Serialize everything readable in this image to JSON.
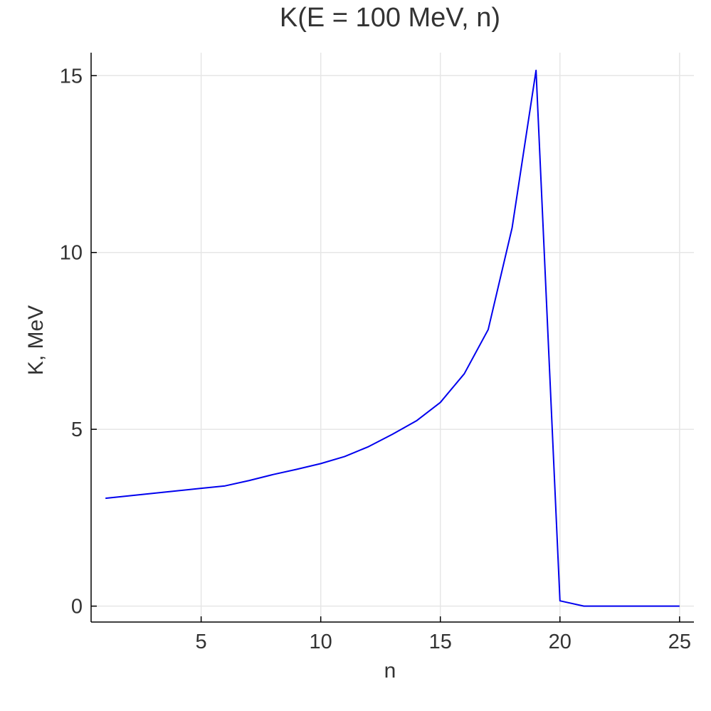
{
  "chart_data": {
    "type": "line",
    "title": "K(E = 100 MeV, n)",
    "xlabel": "n",
    "ylabel": "K, MeV",
    "xlim": [
      0.4,
      25.6
    ],
    "ylim": [
      -0.45,
      15.65
    ],
    "xticks": [
      5,
      10,
      15,
      20,
      25
    ],
    "yticks": [
      0,
      5,
      10,
      15
    ],
    "xtick_labels": [
      "5",
      "10",
      "15",
      "20",
      "25"
    ],
    "ytick_labels": [
      "0",
      "5",
      "10",
      "15"
    ],
    "grid": true,
    "legend": "none",
    "series": [
      {
        "color": "#0000ee",
        "x": [
          1,
          2,
          3,
          4,
          5,
          6,
          7,
          8,
          9,
          10,
          11,
          12,
          13,
          14,
          15,
          16,
          17,
          18,
          19,
          20,
          21,
          22,
          23,
          24,
          25
        ],
        "y": [
          3.05,
          3.12,
          3.19,
          3.26,
          3.33,
          3.4,
          3.55,
          3.72,
          3.87,
          4.03,
          4.23,
          4.51,
          4.86,
          5.24,
          5.76,
          6.57,
          7.82,
          10.7,
          15.15,
          0.15,
          0.0,
          0.0,
          0.0,
          0.0,
          0.0
        ]
      }
    ]
  }
}
